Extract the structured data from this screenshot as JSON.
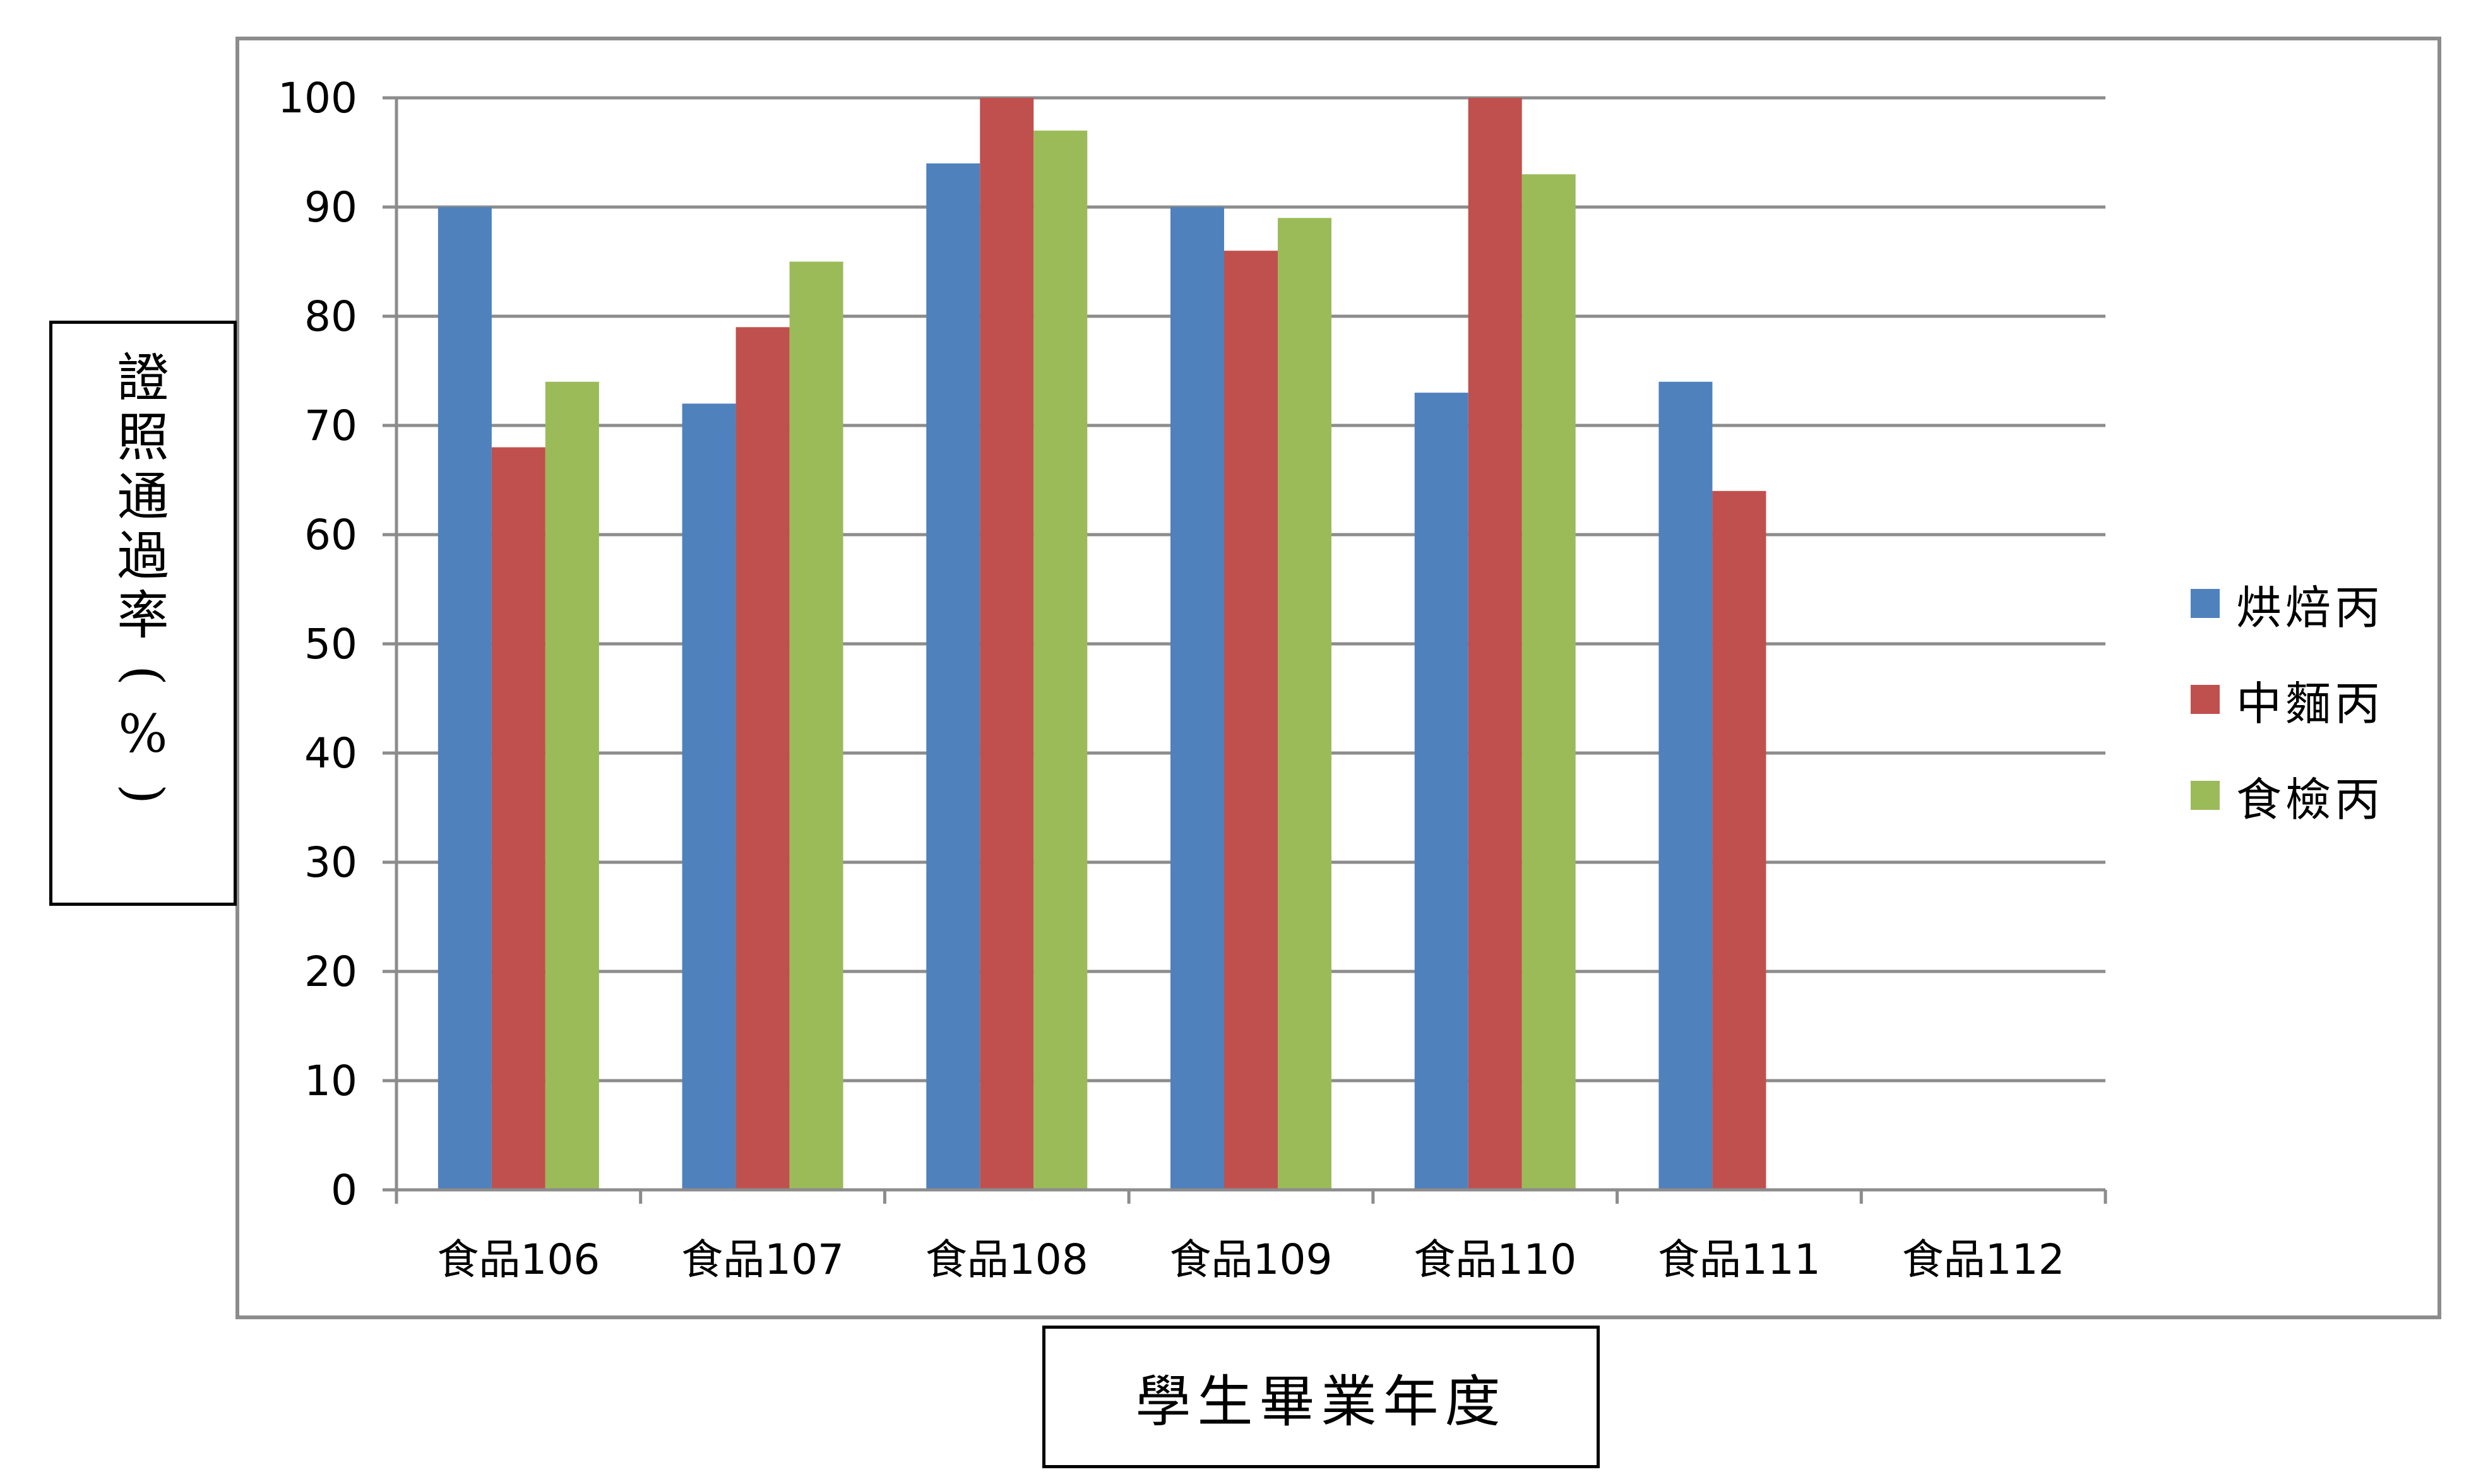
{
  "chart_data": {
    "type": "bar",
    "title": "",
    "ylabel": "證照通過率(%)",
    "xlabel": "學生畢業年度",
    "categories": [
      "食品106",
      "食品107",
      "食品108",
      "食品109",
      "食品110",
      "食品111",
      "食品112"
    ],
    "ylim": [
      0,
      100
    ],
    "yticks": [
      0,
      10,
      20,
      30,
      40,
      50,
      60,
      70,
      80,
      90,
      100
    ],
    "grid": true,
    "legend_position": "right",
    "series": [
      {
        "name": "烘焙丙",
        "color": "#4f81bd",
        "values": [
          90,
          72,
          94,
          90,
          73,
          74,
          null
        ]
      },
      {
        "name": "中麵丙",
        "color": "#c0504d",
        "values": [
          68,
          79,
          100,
          86,
          100,
          64,
          null
        ]
      },
      {
        "name": "食檢丙",
        "color": "#9bbb59",
        "values": [
          74,
          85,
          97,
          89,
          93,
          null,
          null
        ]
      }
    ]
  }
}
